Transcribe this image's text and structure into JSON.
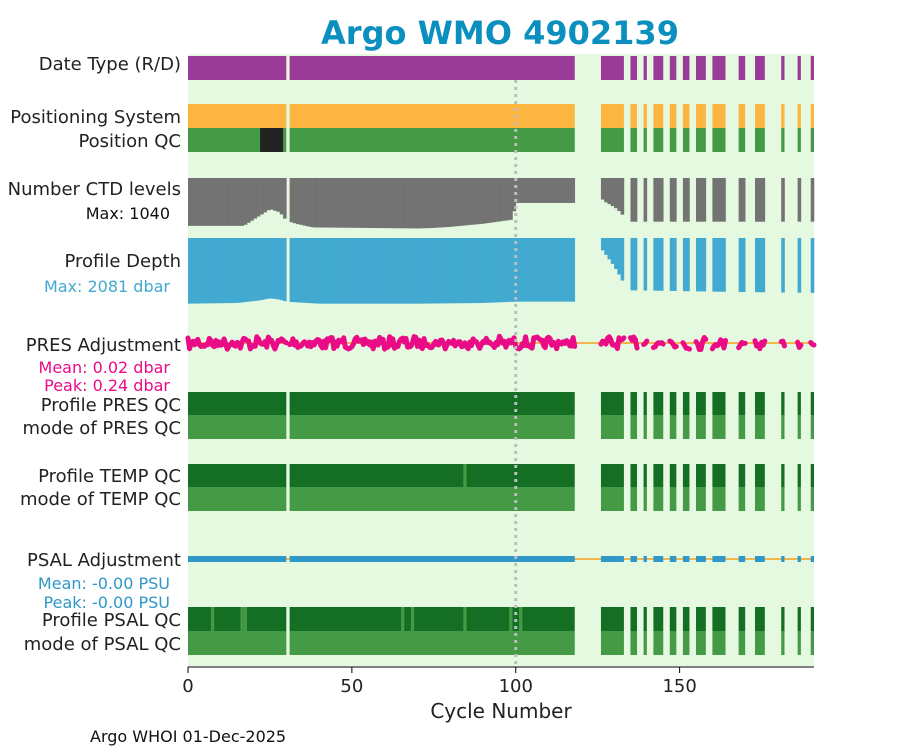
{
  "title": "Argo WMO 4902139",
  "footer": "Argo WHOI 01-Dec-2025",
  "colors": {
    "title": "#0a8fbf",
    "panel_bg": "#e5f8e0",
    "date_type": "#9b3b98",
    "positioning": "#fbb540",
    "qc_good": "#449a45",
    "qc_dark": "#146f24",
    "qc_bad": "#232323",
    "ctd": "#737373",
    "depth": "#42a9d0",
    "pres_adj": "#ea0b87",
    "psal_adj": "#2e98c9",
    "zero_line": "#f3b64e",
    "vline": "#bdbdbd"
  },
  "chart_data": {
    "type": "bar",
    "title": "Argo WMO 4902139",
    "xlabel": "Cycle Number",
    "xlim": [
      0,
      191
    ],
    "xticks": [
      0,
      50,
      100,
      150
    ],
    "tick_labels": [
      "0",
      "50",
      "100",
      "150"
    ],
    "reference_cycle": 100,
    "cycles_present": [
      [
        0,
        30
      ],
      [
        31,
        118
      ],
      [
        126,
        133
      ],
      [
        135,
        137
      ],
      [
        139,
        140
      ],
      [
        142,
        145
      ],
      [
        147,
        149
      ],
      [
        151,
        153
      ],
      [
        155,
        158
      ],
      [
        160,
        164
      ],
      [
        168,
        170
      ],
      [
        173,
        176
      ],
      [
        181,
        182
      ],
      [
        186,
        187
      ],
      [
        190,
        191
      ]
    ],
    "rows": [
      {
        "id": "date-type",
        "label": "Date Type (R/D)",
        "kind": "category"
      },
      {
        "id": "positioning-system",
        "label": "Positioning System",
        "kind": "category"
      },
      {
        "id": "position-qc",
        "label": "Position QC",
        "kind": "qc",
        "bad_cycles": [
          [
            22,
            29
          ]
        ]
      },
      {
        "id": "ctd-levels",
        "label": "Number CTD levels",
        "kind": "profile",
        "max_label": "Max: 1040",
        "max": 1040
      },
      {
        "id": "profile-depth",
        "label": "Profile Depth",
        "kind": "profile",
        "max_label": "Max: 2081 dbar",
        "max": 2081
      },
      {
        "id": "pres-adjustment",
        "label": "PRES Adjustment",
        "kind": "adjustment",
        "mean_label": "Mean: 0.02 dbar",
        "peak_label": "Peak: 0.24 dbar"
      },
      {
        "id": "profile-pres-qc",
        "label": "Profile PRES QC",
        "kind": "qc"
      },
      {
        "id": "mode-pres-qc",
        "label": "mode of PRES QC",
        "kind": "qc"
      },
      {
        "id": "profile-temp-qc",
        "label": "Profile TEMP QC",
        "kind": "qc",
        "degraded_cycles": [
          [
            84,
            85
          ]
        ]
      },
      {
        "id": "mode-temp-qc",
        "label": "mode of TEMP QC",
        "kind": "qc"
      },
      {
        "id": "psal-adjustment",
        "label": "PSAL Adjustment",
        "kind": "adjustment",
        "mean_label": "Mean: -0.00 PSU",
        "peak_label": "Peak: -0.00 PSU"
      },
      {
        "id": "profile-psal-qc",
        "label": "Profile PSAL QC",
        "kind": "qc",
        "degraded_cycles": [
          [
            7,
            8
          ],
          [
            16,
            17
          ],
          [
            17,
            18
          ],
          [
            65,
            66
          ],
          [
            68,
            69
          ],
          [
            84,
            85
          ],
          [
            98,
            99
          ],
          [
            101,
            102
          ]
        ]
      },
      {
        "id": "mode-psal-qc",
        "label": "mode of PSAL QC",
        "kind": "qc"
      }
    ],
    "ctd_levels_fraction": [
      [
        0,
        0.92
      ],
      [
        10,
        0.92
      ],
      [
        17,
        0.92
      ],
      [
        22,
        0.72
      ],
      [
        25,
        0.6
      ],
      [
        28,
        0.66
      ],
      [
        30,
        0.82
      ],
      [
        33,
        0.88
      ],
      [
        38,
        0.95
      ],
      [
        70,
        0.97
      ],
      [
        75,
        0.96
      ],
      [
        80,
        0.94
      ],
      [
        90,
        0.88
      ],
      [
        99,
        0.8
      ],
      [
        100,
        0.48
      ],
      [
        118,
        0.48
      ],
      [
        126,
        0.38
      ],
      [
        127,
        0.45
      ],
      [
        129,
        0.52
      ],
      [
        131,
        0.6
      ],
      [
        133,
        0.74
      ],
      [
        135,
        0.84
      ],
      [
        160,
        0.84
      ],
      [
        191,
        0.84
      ]
    ],
    "profile_depth_fraction": [
      [
        0,
        0.98
      ],
      [
        15,
        0.97
      ],
      [
        22,
        0.93
      ],
      [
        25,
        0.9
      ],
      [
        28,
        0.92
      ],
      [
        30,
        0.95
      ],
      [
        33,
        0.96
      ],
      [
        40,
        0.98
      ],
      [
        70,
        0.98
      ],
      [
        90,
        0.97
      ],
      [
        100,
        0.95
      ],
      [
        118,
        0.95
      ],
      [
        126,
        0.15
      ],
      [
        127,
        0.22
      ],
      [
        129,
        0.35
      ],
      [
        131,
        0.5
      ],
      [
        133,
        0.68
      ],
      [
        135,
        0.78
      ],
      [
        160,
        0.8
      ],
      [
        191,
        0.82
      ]
    ],
    "pres_adjustment_range_dbar": [
      -0.3,
      0.3
    ],
    "psal_adjustment_range_psu": [
      -0.3,
      0.3
    ]
  }
}
